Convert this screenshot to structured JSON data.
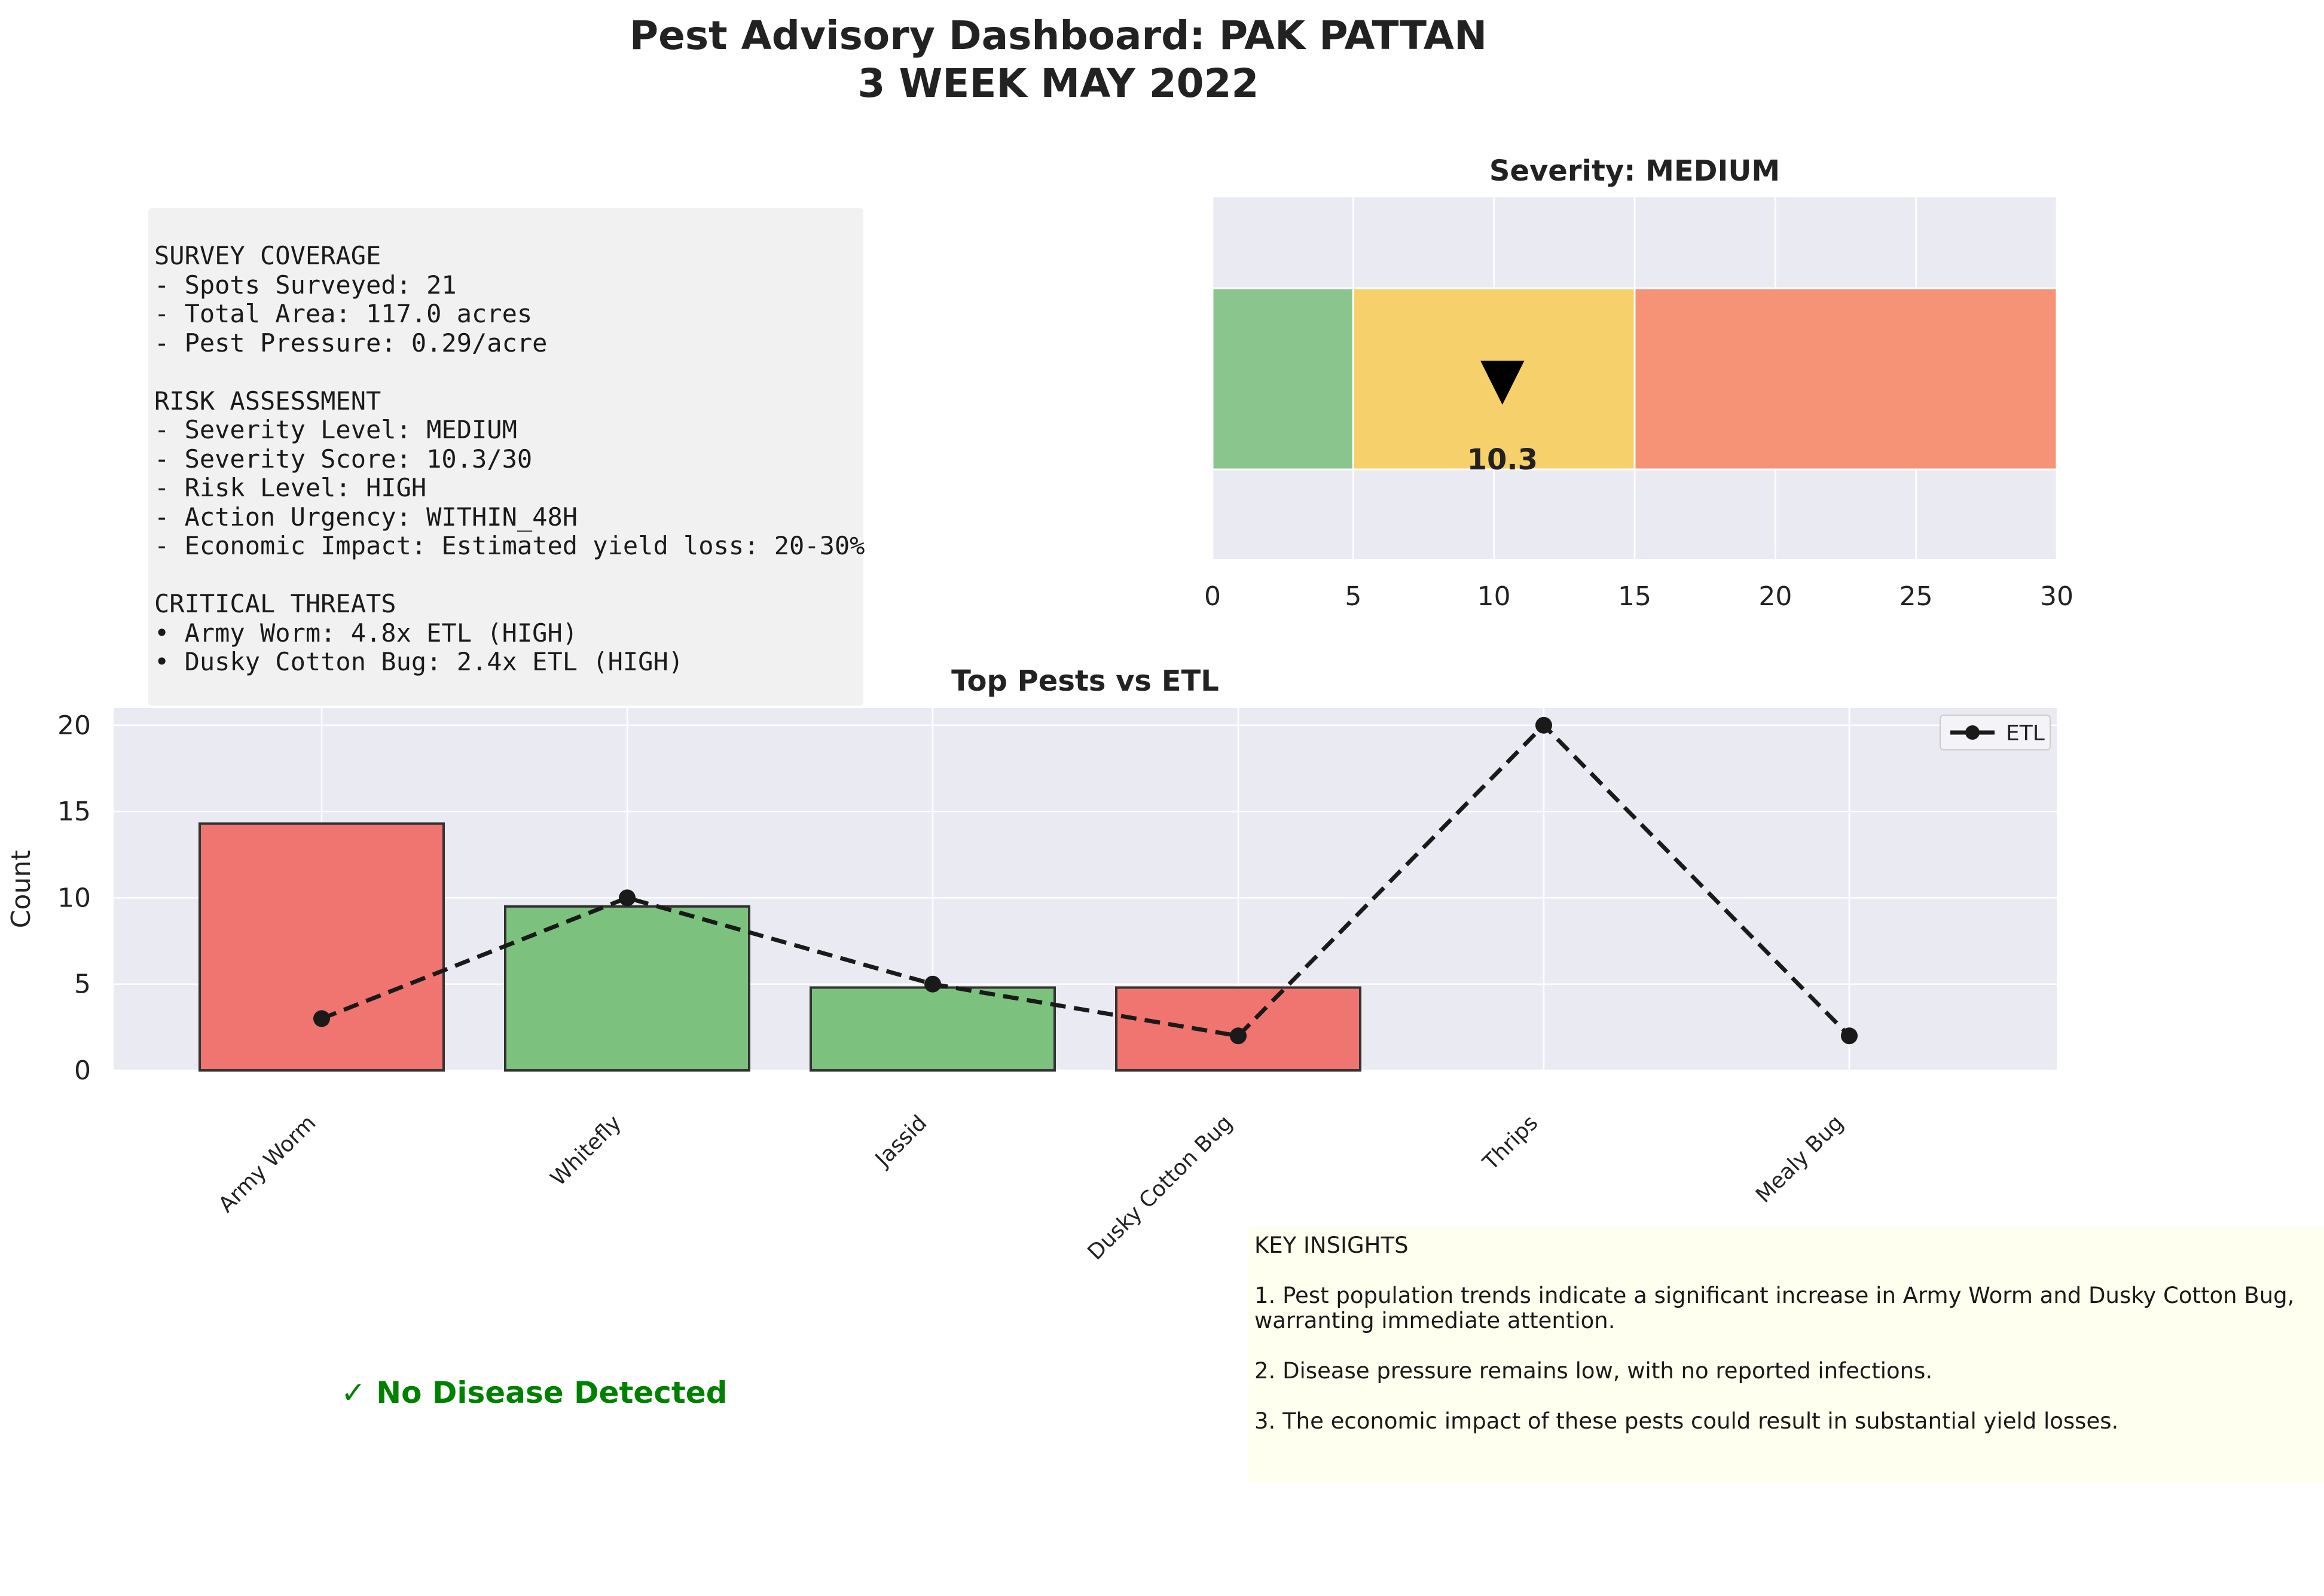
{
  "title": [
    "Pest Advisory Dashboard: PAK PATTAN",
    "3 WEEK MAY 2022"
  ],
  "info_lines": [
    "SURVEY COVERAGE",
    "- Spots Surveyed: 21",
    "- Total Area: 117.0 acres",
    "- Pest Pressure: 0.29/acre",
    "",
    "RISK ASSESSMENT",
    "- Severity Level: MEDIUM",
    "- Severity Score: 10.3/30",
    "- Risk Level: HIGH",
    "- Action Urgency: WITHIN_48H",
    "- Economic Impact: Estimated yield loss: 20-30%",
    "",
    "CRITICAL THREATS",
    "• Army Worm: 4.8x ETL (HIGH)",
    "• Dusky Cotton Bug: 2.4x ETL (HIGH)"
  ],
  "disease_status": "✓ No Disease Detected",
  "insights_lines": [
    "KEY INSIGHTS",
    "",
    "1. Pest population trends indicate a significant increase in Army Worm and Dusky Cotton Bug,",
    "warranting immediate attention.",
    "",
    "2. Disease pressure remains low, with no reported infections.",
    "",
    "3. The economic impact of these pests could result in substantial yield losses."
  ],
  "colors": {
    "low": "#8bc58e",
    "medium": "#f6d06a",
    "high": "#f69377",
    "bar_above_etl": "#f07470",
    "bar_below_etl": "#7cc17e",
    "axes_bg": "#eaeaf2",
    "etl_line": "#1a1a1a"
  },
  "chart_data": [
    {
      "type": "bar",
      "orientation": "horizontal",
      "title": "Severity: MEDIUM",
      "segments": [
        {
          "from": 0,
          "to": 5,
          "level": "low"
        },
        {
          "from": 5,
          "to": 15,
          "level": "medium"
        },
        {
          "from": 15,
          "to": 30,
          "level": "high"
        }
      ],
      "marker": {
        "value": 10.3,
        "label": "10.3",
        "symbol": "▼"
      },
      "xlim": [
        0,
        30
      ],
      "xticks": [
        0,
        5,
        10,
        15,
        20,
        25,
        30
      ],
      "grid": true
    },
    {
      "type": "bar",
      "title": "Top Pests vs ETL",
      "ylabel": "Count",
      "categories": [
        "Army Worm",
        "Whitefly",
        "Jassid",
        "Dusky Cotton Bug",
        "Thrips",
        "Mealy Bug"
      ],
      "series": [
        {
          "values": [
            14.3,
            9.5,
            4.8,
            4.8,
            0,
            0
          ],
          "status": [
            "above",
            "below",
            "below",
            "above",
            "below",
            "below"
          ]
        },
        {
          "name": "ETL",
          "type": "line",
          "values": [
            3,
            10,
            5,
            2,
            20,
            2
          ]
        }
      ],
      "ylim": [
        0,
        21
      ],
      "yticks": [
        0,
        5,
        10,
        15,
        20
      ],
      "legend": "top-right",
      "grid": true
    }
  ]
}
